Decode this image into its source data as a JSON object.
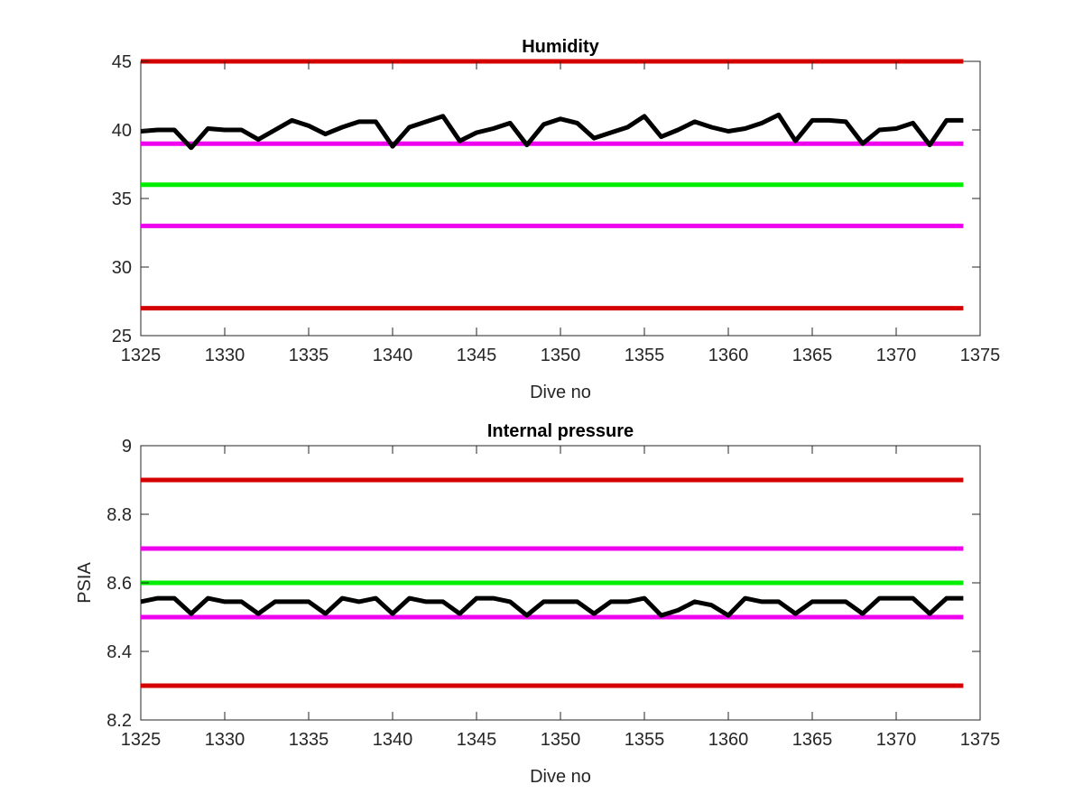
{
  "chart_data": [
    {
      "type": "line",
      "title": "Humidity",
      "xlabel": "Dive no",
      "ylabel": "",
      "xlim": [
        1325,
        1375
      ],
      "ylim": [
        25,
        45
      ],
      "xticks": [
        "1325",
        "1330",
        "1335",
        "1340",
        "1345",
        "1350",
        "1355",
        "1360",
        "1365",
        "1370",
        "1375"
      ],
      "yticks": [
        "25",
        "30",
        "35",
        "40",
        "45"
      ],
      "grid": false,
      "legend": "none",
      "reference_lines": [
        {
          "y": 45,
          "x_range": [
            1325,
            1374
          ],
          "color": "#d40000"
        },
        {
          "y": 39,
          "x_range": [
            1325,
            1374
          ],
          "color": "#ee00ee"
        },
        {
          "y": 36,
          "x_range": [
            1325,
            1374
          ],
          "color": "#00ee00"
        },
        {
          "y": 33,
          "x_range": [
            1325,
            1374
          ],
          "color": "#ee00ee"
        },
        {
          "y": 27,
          "x_range": [
            1325,
            1374
          ],
          "color": "#d40000"
        }
      ],
      "series": [
        {
          "color": "#000000",
          "x": [
            1325,
            1326,
            1327,
            1328,
            1329,
            1330,
            1331,
            1332,
            1333,
            1334,
            1335,
            1336,
            1337,
            1338,
            1339,
            1340,
            1341,
            1342,
            1343,
            1344,
            1345,
            1346,
            1347,
            1348,
            1349,
            1350,
            1351,
            1352,
            1353,
            1354,
            1355,
            1356,
            1357,
            1358,
            1359,
            1360,
            1361,
            1362,
            1363,
            1364,
            1365,
            1366,
            1367,
            1368,
            1369,
            1370,
            1371,
            1372,
            1373,
            1374
          ],
          "values": [
            39.9,
            40.0,
            40.0,
            38.7,
            40.1,
            40.0,
            40.0,
            39.3,
            40.0,
            40.7,
            40.3,
            39.7,
            40.2,
            40.6,
            40.6,
            38.8,
            40.2,
            40.6,
            41.0,
            39.2,
            39.8,
            40.1,
            40.5,
            38.9,
            40.4,
            40.8,
            40.5,
            39.4,
            39.8,
            40.2,
            41.0,
            39.5,
            40.0,
            40.6,
            40.2,
            39.9,
            40.1,
            40.5,
            41.1,
            39.2,
            40.7,
            40.7,
            40.6,
            39.0,
            40.0,
            40.1,
            40.5,
            38.9,
            40.7,
            40.7
          ]
        }
      ]
    },
    {
      "type": "line",
      "title": "Internal pressure",
      "xlabel": "Dive no",
      "ylabel": "PSIA",
      "xlim": [
        1325,
        1375
      ],
      "ylim": [
        8.2,
        9
      ],
      "xticks": [
        "1325",
        "1330",
        "1335",
        "1340",
        "1345",
        "1350",
        "1355",
        "1360",
        "1365",
        "1370",
        "1375"
      ],
      "yticks": [
        "8.2",
        "8.4",
        "8.6",
        "8.8",
        "9"
      ],
      "grid": false,
      "legend": "none",
      "reference_lines": [
        {
          "y": 8.9,
          "x_range": [
            1325,
            1374
          ],
          "color": "#d40000"
        },
        {
          "y": 8.7,
          "x_range": [
            1325,
            1374
          ],
          "color": "#ee00ee"
        },
        {
          "y": 8.6,
          "x_range": [
            1325,
            1374
          ],
          "color": "#00ee00"
        },
        {
          "y": 8.5,
          "x_range": [
            1325,
            1374
          ],
          "color": "#ee00ee"
        },
        {
          "y": 8.3,
          "x_range": [
            1325,
            1374
          ],
          "color": "#d40000"
        }
      ],
      "series": [
        {
          "color": "#000000",
          "x": [
            1325,
            1326,
            1327,
            1328,
            1329,
            1330,
            1331,
            1332,
            1333,
            1334,
            1335,
            1336,
            1337,
            1338,
            1339,
            1340,
            1341,
            1342,
            1343,
            1344,
            1345,
            1346,
            1347,
            1348,
            1349,
            1350,
            1351,
            1352,
            1353,
            1354,
            1355,
            1356,
            1357,
            1358,
            1359,
            1360,
            1361,
            1362,
            1363,
            1364,
            1365,
            1366,
            1367,
            1368,
            1369,
            1370,
            1371,
            1372,
            1373,
            1374
          ],
          "values": [
            8.545,
            8.555,
            8.555,
            8.51,
            8.555,
            8.545,
            8.545,
            8.51,
            8.545,
            8.545,
            8.545,
            8.51,
            8.555,
            8.545,
            8.555,
            8.51,
            8.555,
            8.545,
            8.545,
            8.51,
            8.555,
            8.555,
            8.545,
            8.505,
            8.545,
            8.545,
            8.545,
            8.51,
            8.545,
            8.545,
            8.555,
            8.505,
            8.52,
            8.545,
            8.535,
            8.505,
            8.555,
            8.545,
            8.545,
            8.51,
            8.545,
            8.545,
            8.545,
            8.51,
            8.555,
            8.555,
            8.555,
            8.51,
            8.555,
            8.555
          ]
        }
      ]
    }
  ]
}
